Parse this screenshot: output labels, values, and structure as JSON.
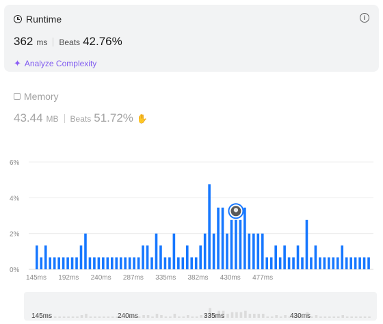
{
  "runtime": {
    "title": "Runtime",
    "value": "362",
    "unit": "ms",
    "beats_label": "Beats",
    "beats_value": "42.76%",
    "analyze_label": "Analyze Complexity",
    "info_icon": "info-icon",
    "icon": "clock-icon"
  },
  "memory": {
    "title": "Memory",
    "value": "43.44",
    "unit": "MB",
    "beats_label": "Beats",
    "beats_value": "51.72%",
    "icon": "chip-icon"
  },
  "colors": {
    "bar": "#1677ff",
    "mini_bar": "#dcdcdc",
    "accent": "#7f5af0"
  },
  "chart_data": {
    "type": "bar",
    "y_ticks": [
      "6%",
      "4%",
      "2%",
      "0%"
    ],
    "ylim": [
      0,
      6
    ],
    "x_ticks": [
      "145ms",
      "192ms",
      "240ms",
      "287ms",
      "335ms",
      "382ms",
      "430ms",
      "477ms"
    ],
    "highlight_index": 45,
    "values": [
      1.33,
      0.67,
      1.33,
      0.67,
      0.67,
      0.67,
      0.67,
      0.67,
      0.67,
      0.67,
      1.33,
      2.0,
      0.67,
      0.67,
      0.67,
      0.67,
      0.67,
      0.67,
      0.67,
      0.67,
      0.67,
      0.67,
      0.67,
      0.67,
      1.33,
      1.33,
      0.67,
      2.0,
      1.33,
      0.67,
      0.67,
      2.0,
      0.67,
      0.67,
      1.33,
      0.67,
      0.67,
      1.33,
      2.0,
      4.76,
      2.0,
      3.45,
      3.45,
      2.0,
      2.76,
      2.76,
      2.76,
      3.45,
      2.0,
      2.0,
      2.0,
      2.0,
      0.67,
      0.67,
      1.33,
      0.67,
      1.33,
      0.67,
      0.67,
      1.33,
      0.67,
      2.76,
      0.67,
      1.33,
      0.67,
      0.67,
      0.67,
      0.67,
      0.67,
      1.33,
      0.67,
      0.67,
      0.67,
      0.67,
      0.67,
      0.67
    ],
    "mini_x_ticks": [
      "145ms",
      "240ms",
      "335ms",
      "430ms"
    ]
  }
}
